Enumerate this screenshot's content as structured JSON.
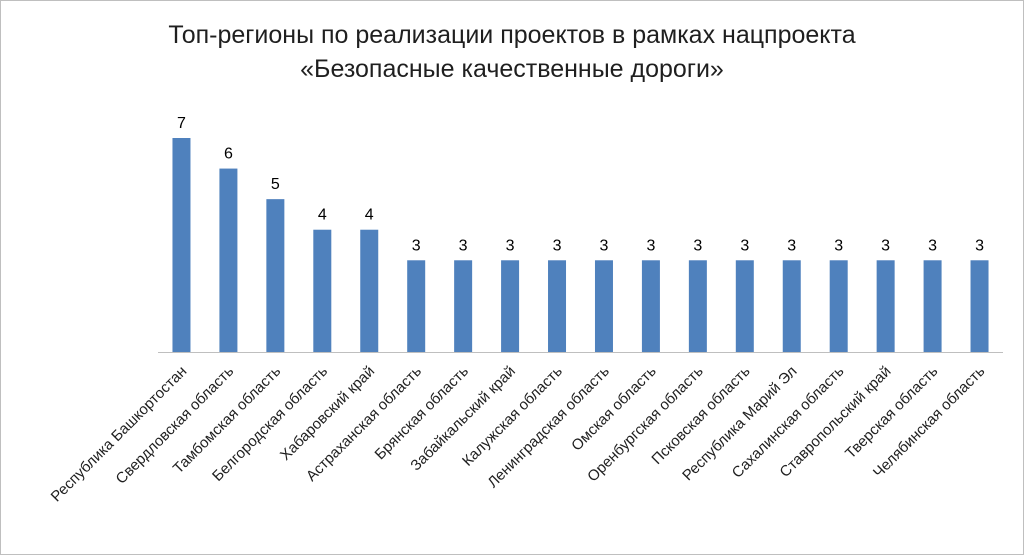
{
  "chart_data": {
    "type": "bar",
    "title_lines": [
      "Топ-регионы по реализации проектов в рамках нацпроекта",
      "«Безопасные качественные дороги»"
    ],
    "categories": [
      "Республика Башкортостан",
      "Свердловская область",
      "Тамбомская область",
      "Белгородская область",
      "Хабаровский край",
      "Астраханская область",
      "Брянская область",
      "Забайкальский край",
      "Калужская область",
      "Ленинградская область",
      "Омская область",
      "Оренбургская область",
      "Псковская область",
      "Республика Марий Эл",
      "Сахалинская область",
      "Ставропольский край",
      "Тверская область",
      "Челябинская область"
    ],
    "values": [
      7,
      6,
      5,
      4,
      4,
      3,
      3,
      3,
      3,
      3,
      3,
      3,
      3,
      3,
      3,
      3,
      3,
      3
    ],
    "ylim": [
      0,
      7
    ],
    "grid": false,
    "bar_color": "#4f81bd",
    "axis_color": "#bfbfbf"
  }
}
